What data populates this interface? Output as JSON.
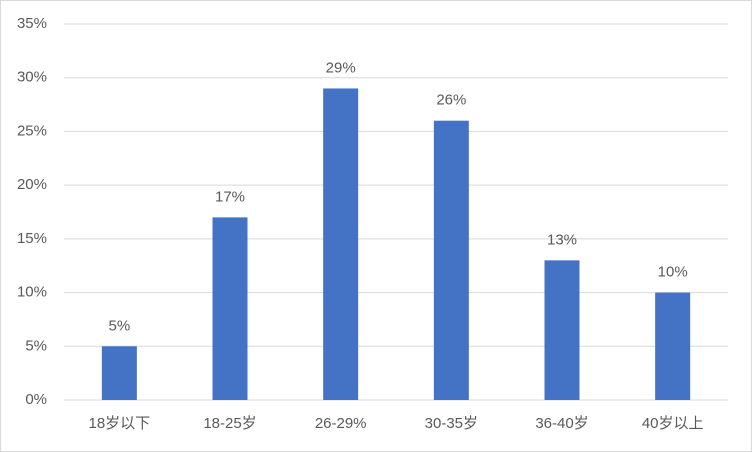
{
  "chart_data": {
    "type": "bar",
    "categories": [
      "18岁以下",
      "18-25岁",
      "26-29%",
      "30-35岁",
      "36-40岁",
      "40岁以上"
    ],
    "values": [
      5,
      17,
      29,
      26,
      13,
      10
    ],
    "value_labels": [
      "5%",
      "17%",
      "29%",
      "26%",
      "13%",
      "10%"
    ],
    "color": "#4472c4",
    "ylim": [
      0,
      35
    ],
    "yticks": [
      {
        "value": 0,
        "label": "0%"
      },
      {
        "value": 5,
        "label": "5%"
      },
      {
        "value": 10,
        "label": "10%"
      },
      {
        "value": 15,
        "label": "15%"
      },
      {
        "value": 20,
        "label": "20%"
      },
      {
        "value": 25,
        "label": "25%"
      },
      {
        "value": 30,
        "label": "30%"
      },
      {
        "value": 35,
        "label": "35%"
      }
    ],
    "grid": true
  }
}
